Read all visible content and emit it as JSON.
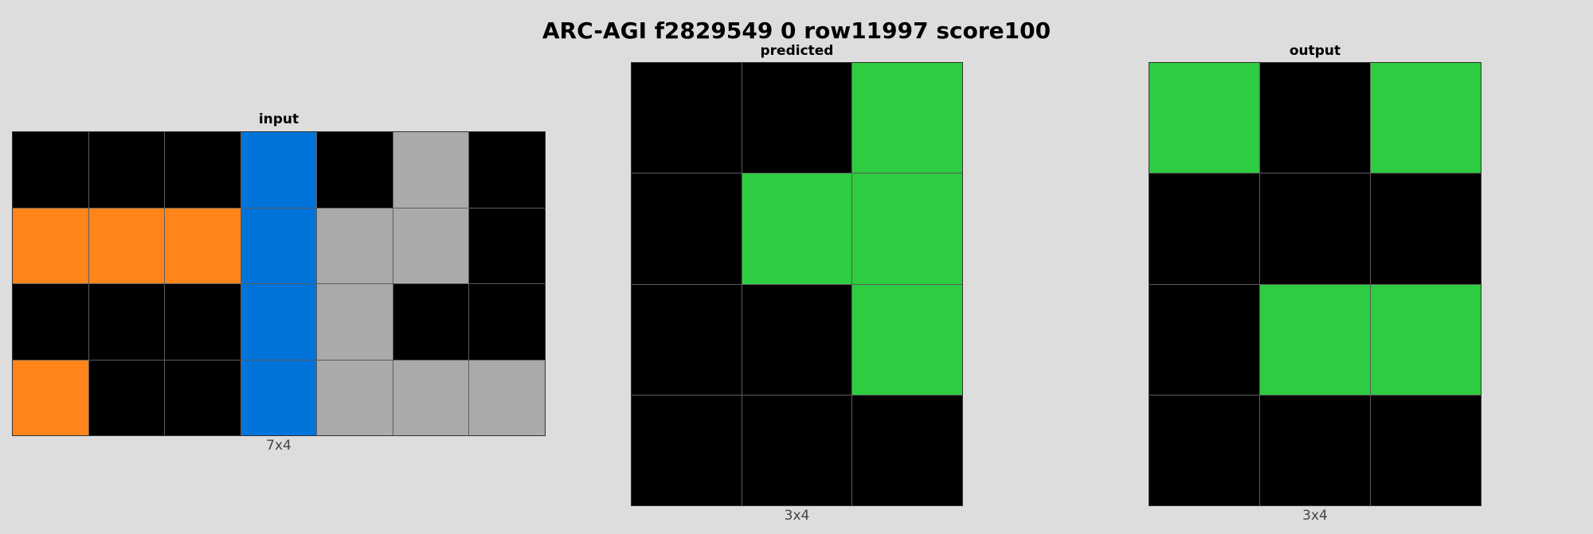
{
  "title": "ARC-AGI f2829549 0 row11997 score100",
  "palette": {
    "0": "#000000",
    "1": "#0074d9",
    "3": "#2ecc40",
    "5": "#aaaaaa",
    "7": "#ff851b"
  },
  "panels": {
    "input": {
      "label": "input",
      "dims": "7x4",
      "rows": [
        [
          0,
          0,
          0,
          1,
          0,
          5,
          0
        ],
        [
          7,
          7,
          7,
          1,
          5,
          5,
          0
        ],
        [
          0,
          0,
          0,
          1,
          5,
          0,
          0
        ],
        [
          7,
          0,
          0,
          1,
          5,
          5,
          5
        ]
      ]
    },
    "predicted": {
      "label": "predicted",
      "dims": "3x4",
      "rows": [
        [
          0,
          0,
          3
        ],
        [
          0,
          3,
          3
        ],
        [
          0,
          0,
          3
        ],
        [
          0,
          0,
          0
        ]
      ]
    },
    "output": {
      "label": "output",
      "dims": "3x4",
      "rows": [
        [
          3,
          0,
          3
        ],
        [
          0,
          0,
          0
        ],
        [
          0,
          3,
          3
        ],
        [
          0,
          0,
          0
        ]
      ]
    }
  }
}
